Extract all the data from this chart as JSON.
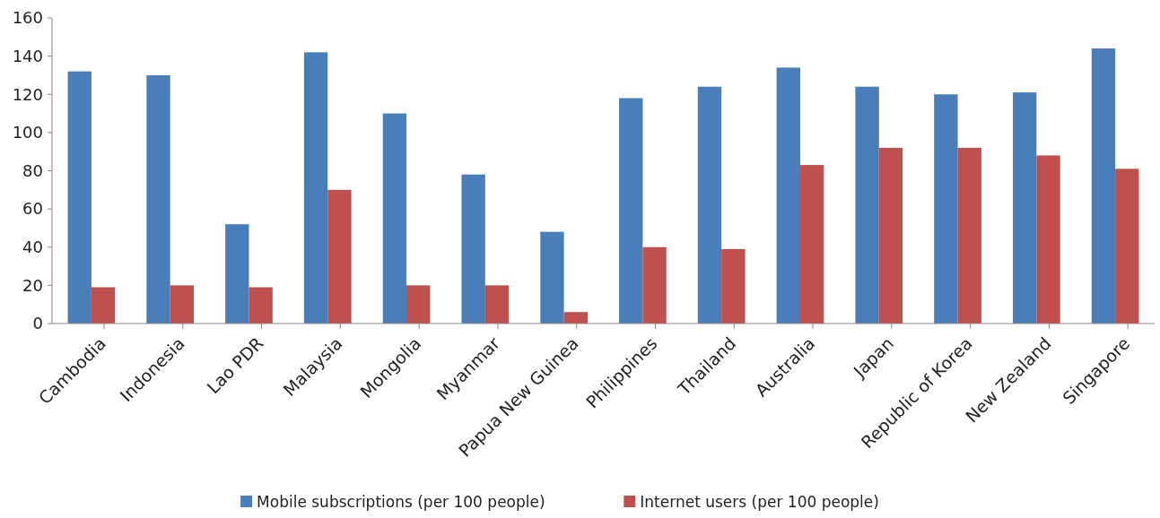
{
  "chart_data": {
    "type": "bar",
    "categories": [
      "Cambodia",
      "Indonesia",
      "Lao PDR",
      "Malaysia",
      "Mongolia",
      "Myanmar",
      "Papua New Guinea",
      "Philippines",
      "Thailand",
      "Australia",
      "Japan",
      "Republic of Korea",
      "New Zealand",
      "Singapore"
    ],
    "series": [
      {
        "name": "Mobile subscriptions (per 100 people)",
        "color": "#4a7ebb",
        "values": [
          132,
          130,
          52,
          142,
          110,
          78,
          48,
          118,
          124,
          134,
          124,
          120,
          121,
          144
        ]
      },
      {
        "name": "Internet users (per 100 people)",
        "color": "#c0504d",
        "values": [
          19,
          20,
          19,
          70,
          20,
          20,
          6,
          40,
          39,
          83,
          92,
          92,
          88,
          81
        ]
      }
    ],
    "ylim": [
      0,
      160
    ],
    "yticks": [
      0,
      20,
      40,
      60,
      80,
      100,
      120,
      140,
      160
    ],
    "grid": false,
    "legend": "bottom"
  }
}
